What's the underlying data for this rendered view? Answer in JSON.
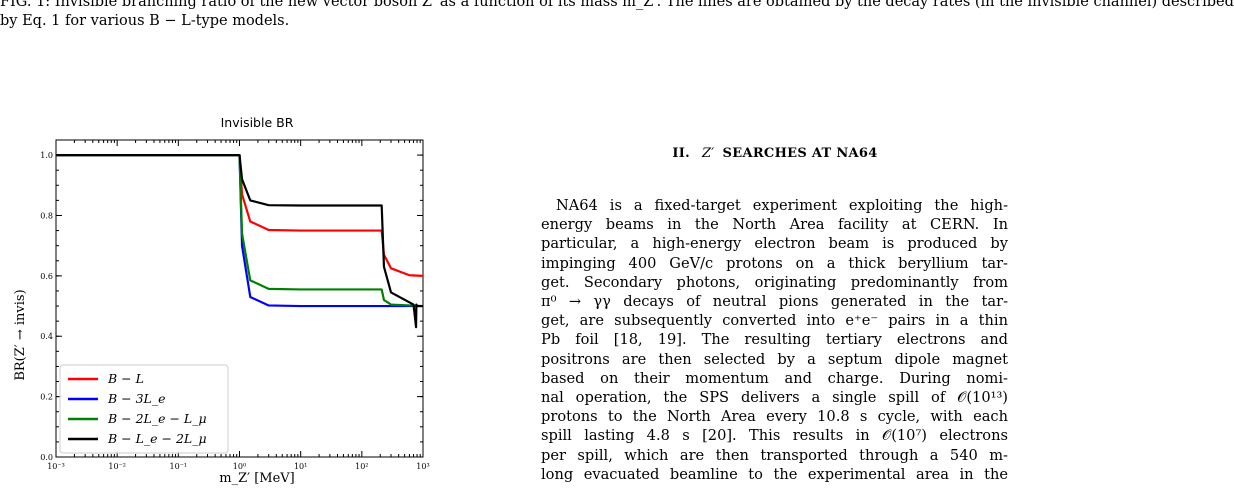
{
  "caption": {
    "line1": "FIG. 1: Invisible branching ratio of the new vector boson Z′ as a function of its mass m_Z′. The lines are obtained by the decay rates (in the invisible channel) described",
    "line2": "by Eq. 1 for various B − L-type models."
  },
  "section": {
    "number": "II.",
    "symbol": "Z′",
    "title": "SEARCHES AT NA64"
  },
  "body_lines": [
    "NA64 is a fixed-target experiment exploiting the high-",
    "energy beams in the North Area facility at CERN. In",
    "particular, a high-energy electron beam is produced by",
    "impinging 400 GeV/c protons on a thick beryllium tar-",
    "get. Secondary photons, originating predominantly from",
    "π⁰ → γγ decays of neutral pions generated in the tar-",
    "get, are subsequently converted into e⁺e⁻ pairs in a thin",
    "Pb foil [18, 19].  The resulting tertiary electrons and",
    "positrons are then selected by a septum dipole magnet",
    "based on their momentum and charge.  During nomi-",
    "nal operation, the SPS delivers a single spill of 𝒪(10¹³)",
    "protons to the North Area every 10.8 s cycle, with each",
    "spill lasting 4.8 s [20].  This results in 𝒪(10⁷) electrons",
    "per spill, which are then transported through a 540 m-",
    "long evacuated beamline to the experimental area in the"
  ],
  "chart_data": {
    "type": "line",
    "title": "Invisible BR",
    "xlabel": "m_Z′ [MeV]",
    "ylabel": "BR(Z′ → invis)",
    "xscale": "log",
    "xlim": [
      0.001,
      1000
    ],
    "ylim": [
      0,
      1.05
    ],
    "x_ticks": [
      "10⁻³",
      "10⁻²",
      "10⁻¹",
      "10⁰",
      "10¹",
      "10²",
      "10³"
    ],
    "y_ticks": [
      "0.0",
      "0.2",
      "0.4",
      "0.6",
      "0.8",
      "1.0"
    ],
    "legend_position": "lower-left",
    "series": [
      {
        "name": "B − L",
        "color": "#ff0000",
        "x": [
          0.001,
          1.0,
          1.1,
          1.5,
          3,
          10,
          100,
          211,
          230,
          300,
          600,
          1000
        ],
        "y": [
          1.0,
          1.0,
          0.87,
          0.78,
          0.752,
          0.75,
          0.75,
          0.75,
          0.67,
          0.625,
          0.602,
          0.6
        ]
      },
      {
        "name": "B − 3L_e",
        "color": "#0000ff",
        "x": [
          0.001,
          1.0,
          1.1,
          1.5,
          3,
          10,
          100,
          211,
          1000
        ],
        "y": [
          1.0,
          1.0,
          0.7,
          0.53,
          0.502,
          0.5,
          0.5,
          0.5,
          0.5
        ]
      },
      {
        "name": "B − 2L_e − L_μ",
        "color": "#008000",
        "x": [
          0.001,
          1.0,
          1.1,
          1.5,
          3,
          10,
          100,
          211,
          230,
          300,
          1000
        ],
        "y": [
          1.0,
          1.0,
          0.74,
          0.585,
          0.557,
          0.555,
          0.555,
          0.555,
          0.52,
          0.505,
          0.5
        ]
      },
      {
        "name": "B − L_e − 2L_μ",
        "color": "#000000",
        "x": [
          0.001,
          1.0,
          1.1,
          1.5,
          3,
          10,
          100,
          211,
          230,
          300,
          700,
          770,
          780,
          800,
          1000
        ],
        "y": [
          1.0,
          1.0,
          0.92,
          0.85,
          0.834,
          0.833,
          0.833,
          0.833,
          0.63,
          0.545,
          0.505,
          0.43,
          0.505,
          0.5,
          0.5
        ]
      }
    ]
  }
}
